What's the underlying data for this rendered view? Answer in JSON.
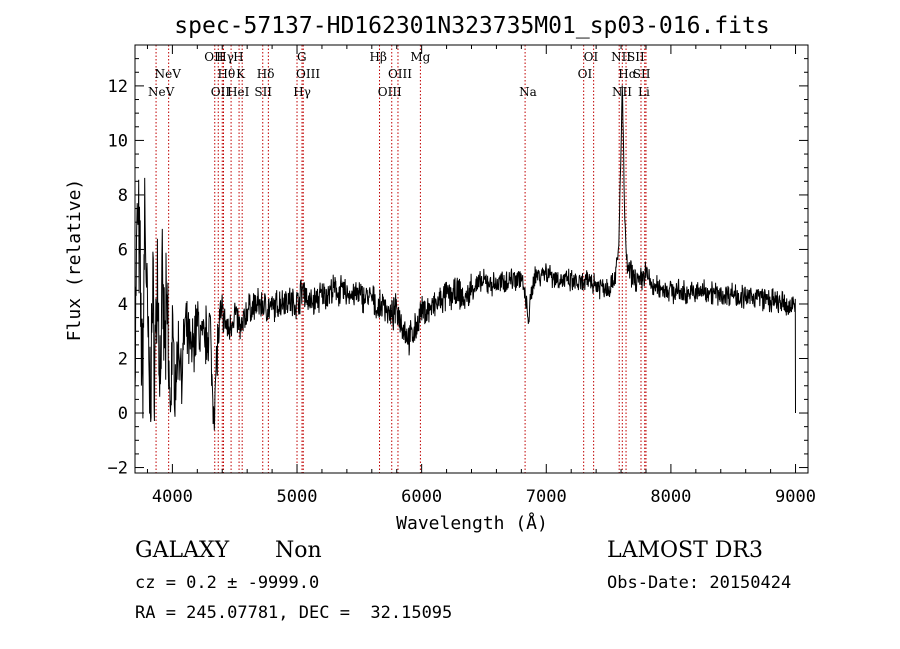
{
  "chart_data": {
    "type": "line",
    "title": "spec-57137-HD162301N323735M01_sp03-016.fits",
    "xlabel": "Wavelength (Å)",
    "ylabel": "Flux (relative)",
    "xlim": [
      3700,
      9100
    ],
    "ylim": [
      -2.2,
      13.5
    ],
    "xticks": [
      4000,
      5000,
      6000,
      7000,
      8000,
      9000
    ],
    "yticks": [
      -2,
      0,
      2,
      4,
      6,
      8,
      10,
      12
    ],
    "grid": false,
    "lines": [
      {
        "label": "NeV",
        "wave": 3869,
        "row": 1,
        "offset": -8
      },
      {
        "label": "NeV",
        "wave": 3970,
        "row": 0,
        "offset": -14
      },
      {
        "label": "OII",
        "wave": 4340,
        "row": 2,
        "offset": -4
      },
      {
        "label": "OII",
        "wave": 4368,
        "row": -1,
        "offset": -14
      },
      {
        "label": "Hγ",
        "wave": 4400,
        "row": -1,
        "offset": -6
      },
      {
        "label": "Hθ",
        "wave": 4410,
        "row": 0,
        "offset": -6
      },
      {
        "label": "HeI",
        "wave": 4471,
        "row": 2,
        "offset": -4
      },
      {
        "label": "H",
        "wave": 4535,
        "row": -1,
        "offset": -6
      },
      {
        "label": "K",
        "wave": 4560,
        "row": 0,
        "offset": -6
      },
      {
        "label": "Hδ",
        "wave": 4725,
        "row": 0,
        "offset": -6
      },
      {
        "label": "SII",
        "wave": 4770,
        "row": 2,
        "offset": -14
      },
      {
        "label": "G",
        "wave": 5000,
        "row": -1,
        "offset": 0
      },
      {
        "label": "OIII",
        "wave": 5040,
        "row": 0,
        "offset": -6
      },
      {
        "label": "Hγ",
        "wave": 5050,
        "row": 2,
        "offset": -10
      },
      {
        "label": "Hβ",
        "wave": 5662,
        "row": -1,
        "offset": -10
      },
      {
        "label": "OIII",
        "wave": 5760,
        "row": 2,
        "offset": -14
      },
      {
        "label": "OIII",
        "wave": 5810,
        "row": 0,
        "offset": -10
      },
      {
        "label": "Mg",
        "wave": 5990,
        "row": -1,
        "offset": -10
      },
      {
        "label": "Na",
        "wave": 6830,
        "row": 2,
        "offset": -6
      },
      {
        "label": "OI",
        "wave": 7300,
        "row": 0,
        "offset": -6
      },
      {
        "label": "OI",
        "wave": 7380,
        "row": -1,
        "offset": -10
      },
      {
        "label": "NII",
        "wave": 7585,
        "row": -1,
        "offset": -8
      },
      {
        "label": "Hα",
        "wave": 7610,
        "row": 0,
        "offset": -4
      },
      {
        "label": "NII",
        "wave": 7640,
        "row": 2,
        "offset": -14
      },
      {
        "label": "SII",
        "wave": 7760,
        "row": -1,
        "offset": -14
      },
      {
        "label": "SII",
        "wave": 7790,
        "row": 0,
        "offset": -12
      },
      {
        "label": "Li",
        "wave": 7800,
        "row": 2,
        "offset": -8
      }
    ],
    "anchors": [
      [
        3700,
        2.0
      ],
      [
        3720,
        7.5
      ],
      [
        3740,
        5.0
      ],
      [
        3760,
        1.0
      ],
      [
        3780,
        7.8
      ],
      [
        3800,
        3.0
      ],
      [
        3820,
        0.5
      ],
      [
        3840,
        4.0
      ],
      [
        3860,
        2.0
      ],
      [
        3880,
        5.0
      ],
      [
        3900,
        1.5
      ],
      [
        3920,
        4.0
      ],
      [
        3940,
        2.5
      ],
      [
        3960,
        3.5
      ],
      [
        3980,
        0.0
      ],
      [
        4000,
        3.0
      ],
      [
        4020,
        1.0
      ],
      [
        4050,
        2.5
      ],
      [
        4080,
        1.5
      ],
      [
        4100,
        3.2
      ],
      [
        4150,
        2.2
      ],
      [
        4200,
        3.3
      ],
      [
        4250,
        2.5
      ],
      [
        4300,
        3.3
      ],
      [
        4320,
        1.0
      ],
      [
        4340,
        0.3
      ],
      [
        4360,
        2.5
      ],
      [
        4400,
        3.6
      ],
      [
        4450,
        3.0
      ],
      [
        4500,
        3.7
      ],
      [
        4550,
        3.0
      ],
      [
        4600,
        3.8
      ],
      [
        4700,
        4.0
      ],
      [
        4800,
        3.8
      ],
      [
        4900,
        4.2
      ],
      [
        5000,
        4.0
      ],
      [
        5050,
        4.6
      ],
      [
        5100,
        4.0
      ],
      [
        5200,
        4.3
      ],
      [
        5300,
        4.5
      ],
      [
        5400,
        4.4
      ],
      [
        5500,
        4.3
      ],
      [
        5600,
        4.2
      ],
      [
        5650,
        3.8
      ],
      [
        5700,
        4.0
      ],
      [
        5750,
        3.5
      ],
      [
        5800,
        3.8
      ],
      [
        5850,
        3.2
      ],
      [
        5900,
        2.7
      ],
      [
        5950,
        3.1
      ],
      [
        6000,
        3.7
      ],
      [
        6100,
        3.9
      ],
      [
        6200,
        4.3
      ],
      [
        6300,
        4.4
      ],
      [
        6350,
        4.1
      ],
      [
        6400,
        4.6
      ],
      [
        6500,
        4.8
      ],
      [
        6600,
        4.7
      ],
      [
        6700,
        4.9
      ],
      [
        6800,
        5.0
      ],
      [
        6830,
        4.2
      ],
      [
        6860,
        3.5
      ],
      [
        6900,
        5.0
      ],
      [
        7000,
        5.2
      ],
      [
        7100,
        4.9
      ],
      [
        7200,
        4.8
      ],
      [
        7300,
        4.7
      ],
      [
        7350,
        4.9
      ],
      [
        7400,
        4.7
      ],
      [
        7500,
        4.6
      ],
      [
        7550,
        5.0
      ],
      [
        7580,
        5.8
      ],
      [
        7600,
        9.8
      ],
      [
        7610,
        12.1
      ],
      [
        7620,
        9.5
      ],
      [
        7630,
        7.0
      ],
      [
        7650,
        5.3
      ],
      [
        7700,
        5.0
      ],
      [
        7750,
        4.8
      ],
      [
        7800,
        5.2
      ],
      [
        7850,
        4.6
      ],
      [
        7900,
        4.6
      ],
      [
        8000,
        4.5
      ],
      [
        8100,
        4.4
      ],
      [
        8200,
        4.4
      ],
      [
        8300,
        4.5
      ],
      [
        8400,
        4.3
      ],
      [
        8500,
        4.4
      ],
      [
        8600,
        4.2
      ],
      [
        8700,
        4.3
      ],
      [
        8800,
        4.1
      ],
      [
        8900,
        4.0
      ],
      [
        8950,
        3.8
      ],
      [
        9000,
        4.2
      ]
    ]
  },
  "footer": {
    "class_label": "GALAXY",
    "subclass": "Non",
    "survey": "LAMOST DR3",
    "cz": "cz = 0.2 ± -9999.0",
    "obs_date": "Obs-Date: 20150424",
    "coords": "RA = 245.07781, DEC =  32.15095"
  }
}
